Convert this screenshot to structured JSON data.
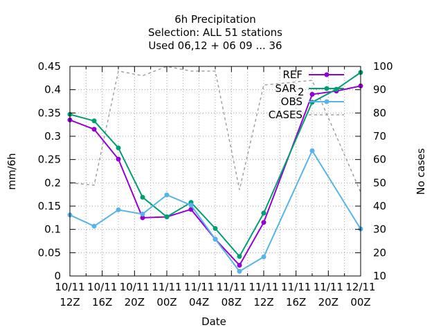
{
  "chart_data": {
    "type": "line",
    "title_lines": [
      "6h Precipitation",
      "Selection: ALL      51 stations",
      "Used  06,12  + 06 09 ... 36"
    ],
    "xlabel": "Date",
    "ylabel": "mm/6h",
    "y2label": "No cases",
    "ylim": [
      0,
      0.45
    ],
    "y2lim": [
      10,
      100
    ],
    "y_ticks": [
      "0",
      "0.05",
      "0.1",
      "0.15",
      "0.2",
      "0.25",
      "0.3",
      "0.35",
      "0.4",
      "0.45"
    ],
    "y2_ticks": [
      "10",
      "20",
      "30",
      "40",
      "50",
      "60",
      "70",
      "80",
      "90",
      "100"
    ],
    "x_ticks": [
      {
        "top": "10/11",
        "bottom": "12Z"
      },
      {
        "top": "10/11",
        "bottom": "16Z"
      },
      {
        "top": "10/11",
        "bottom": "20Z"
      },
      {
        "top": "11/11",
        "bottom": "00Z"
      },
      {
        "top": "11/11",
        "bottom": "04Z"
      },
      {
        "top": "11/11",
        "bottom": "08Z"
      },
      {
        "top": "11/11",
        "bottom": "12Z"
      },
      {
        "top": "11/11",
        "bottom": "16Z"
      },
      {
        "top": "11/11",
        "bottom": "20Z"
      },
      {
        "top": "12/11",
        "bottom": "00Z"
      }
    ],
    "x_hours": [
      12,
      15,
      18,
      21,
      24,
      27,
      30,
      33,
      36,
      39,
      42,
      45,
      48
    ],
    "xlim_hours": [
      12,
      48
    ],
    "legend_position": "top-right",
    "grid": true,
    "series": [
      {
        "name": "REF",
        "color": "#9400d3",
        "marker": true,
        "dash": "",
        "values": [
          0.335,
          0.315,
          0.251,
          0.125,
          0.127,
          0.143,
          0.079,
          0.023,
          0.115,
          null,
          0.39,
          0.397,
          0.408
        ]
      },
      {
        "name": "SAR",
        "subscript": "2",
        "color": "#009e73",
        "marker": true,
        "dash": "",
        "values": [
          0.347,
          0.333,
          0.275,
          0.169,
          0.127,
          0.158,
          0.102,
          0.042,
          0.135,
          null,
          0.373,
          0.401,
          0.437
        ]
      },
      {
        "name": "OBS",
        "color": "#56b4e9",
        "marker": true,
        "dash": "",
        "values": [
          0.131,
          0.107,
          0.142,
          0.133,
          0.174,
          0.152,
          0.079,
          0.01,
          0.041,
          null,
          0.269,
          null,
          0.101
        ]
      },
      {
        "name": "CASES",
        "color": "#a0a0a0",
        "marker": false,
        "dash": "4,4",
        "axis": "y2",
        "values": [
          50,
          49,
          98,
          96,
          100,
          98,
          98,
          47,
          92,
          93,
          94,
          70,
          46
        ]
      }
    ]
  }
}
